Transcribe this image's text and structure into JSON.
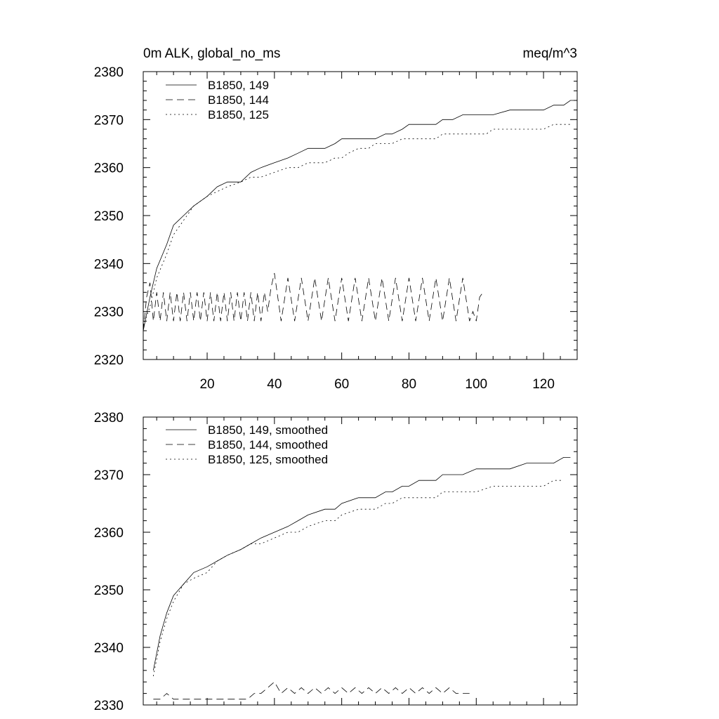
{
  "page": {
    "title_left": "0m ALK, global_no_ms",
    "title_right": "meq/m^3"
  },
  "chart_data": [
    {
      "type": "line",
      "title": "0m ALK, global_no_ms",
      "units": "meq/m^3",
      "xlim": [
        1,
        130
      ],
      "ylim": [
        2320,
        2380
      ],
      "x_ticks": [
        20,
        40,
        60,
        80,
        100,
        120
      ],
      "y_ticks": [
        2320,
        2330,
        2340,
        2350,
        2360,
        2370,
        2380
      ],
      "legend_position": "top-left",
      "series": [
        {
          "name": "B1850, 149",
          "dash": "solid",
          "x": [
            1,
            3,
            5,
            8,
            10,
            13,
            16,
            20,
            23,
            26,
            30,
            33,
            36,
            40,
            44,
            47,
            50,
            55,
            58,
            60,
            62,
            65,
            68,
            70,
            73,
            75,
            78,
            80,
            85,
            88,
            90,
            93,
            96,
            100,
            105,
            110,
            115,
            120,
            123,
            126,
            128,
            130
          ],
          "y": [
            2326,
            2333,
            2339,
            2344,
            2348,
            2350,
            2352,
            2354,
            2356,
            2357,
            2357,
            2359,
            2360,
            2361,
            2362,
            2363,
            2364,
            2364,
            2365,
            2366,
            2366,
            2366,
            2366,
            2366,
            2367,
            2367,
            2368,
            2369,
            2369,
            2369,
            2370,
            2370,
            2371,
            2371,
            2371,
            2372,
            2372,
            2372,
            2373,
            2373,
            2374,
            2374
          ]
        },
        {
          "name": "B1850, 144",
          "dash": "dashed",
          "x": [
            1,
            2,
            3,
            4,
            5,
            6,
            7,
            8,
            9,
            10,
            11,
            12,
            13,
            14,
            15,
            16,
            17,
            18,
            19,
            20,
            21,
            22,
            23,
            24,
            25,
            26,
            27,
            28,
            29,
            30,
            31,
            32,
            33,
            34,
            35,
            36,
            37,
            38,
            39,
            40,
            42,
            44,
            46,
            48,
            50,
            52,
            54,
            56,
            58,
            60,
            62,
            64,
            66,
            68,
            70,
            72,
            74,
            76,
            78,
            80,
            82,
            84,
            86,
            88,
            90,
            92,
            94,
            96,
            98,
            99,
            100,
            101,
            102
          ],
          "y": [
            2326,
            2333,
            2336,
            2328,
            2334,
            2328,
            2334,
            2328,
            2334,
            2328,
            2334,
            2328,
            2334,
            2328,
            2334,
            2328,
            2334,
            2328,
            2334,
            2328,
            2334,
            2328,
            2334,
            2328,
            2334,
            2328,
            2334,
            2328,
            2334,
            2328,
            2334,
            2328,
            2334,
            2328,
            2334,
            2328,
            2334,
            2330,
            2335,
            2338,
            2328,
            2337,
            2328,
            2337,
            2328,
            2337,
            2328,
            2337,
            2328,
            2337,
            2328,
            2337,
            2328,
            2337,
            2328,
            2337,
            2328,
            2337,
            2328,
            2337,
            2328,
            2337,
            2328,
            2337,
            2328,
            2337,
            2328,
            2337,
            2328,
            2330,
            2328,
            2333,
            2334
          ]
        },
        {
          "name": "B1850, 125",
          "dash": "dotted",
          "x": [
            1,
            3,
            5,
            8,
            10,
            13,
            16,
            20,
            23,
            26,
            30,
            33,
            36,
            40,
            44,
            47,
            50,
            55,
            58,
            60,
            62,
            65,
            68,
            70,
            73,
            75,
            78,
            80,
            83,
            85,
            88,
            90,
            93,
            96,
            100,
            103,
            105,
            108,
            110,
            113,
            116,
            120,
            123,
            126,
            128
          ],
          "y": [
            2327,
            2331,
            2337,
            2342,
            2346,
            2349,
            2352,
            2354,
            2355,
            2356,
            2357,
            2358,
            2358,
            2359,
            2360,
            2360,
            2361,
            2361,
            2362,
            2362,
            2363,
            2364,
            2364,
            2365,
            2365,
            2365,
            2366,
            2366,
            2366,
            2366,
            2366,
            2367,
            2367,
            2367,
            2367,
            2367,
            2368,
            2368,
            2368,
            2368,
            2368,
            2368,
            2369,
            2369,
            2369
          ]
        }
      ]
    },
    {
      "type": "line",
      "xlim": [
        1,
        130
      ],
      "ylim": [
        2330,
        2380
      ],
      "y_ticks": [
        2330,
        2340,
        2350,
        2360,
        2370,
        2380
      ],
      "legend_position": "top-left",
      "series": [
        {
          "name": "B1850, 149, smoothed",
          "dash": "solid",
          "x": [
            4,
            6,
            8,
            10,
            13,
            16,
            20,
            23,
            26,
            30,
            33,
            36,
            40,
            44,
            47,
            50,
            55,
            58,
            60,
            65,
            70,
            73,
            75,
            78,
            80,
            83,
            85,
            88,
            90,
            93,
            96,
            100,
            105,
            110,
            115,
            120,
            123,
            126,
            128
          ],
          "y": [
            2336,
            2342,
            2346,
            2349,
            2351,
            2353,
            2354,
            2355,
            2356,
            2357,
            2358,
            2359,
            2360,
            2361,
            2362,
            2363,
            2364,
            2364,
            2365,
            2366,
            2366,
            2367,
            2367,
            2368,
            2368,
            2369,
            2369,
            2369,
            2370,
            2370,
            2370,
            2371,
            2371,
            2371,
            2372,
            2372,
            2372,
            2373,
            2373
          ]
        },
        {
          "name": "B1850, 144, smoothed",
          "dash": "dashed",
          "x": [
            4,
            6,
            8,
            10,
            12,
            14,
            16,
            18,
            20,
            22,
            24,
            26,
            28,
            30,
            32,
            34,
            36,
            38,
            40,
            42,
            44,
            46,
            48,
            50,
            52,
            54,
            56,
            58,
            60,
            62,
            64,
            66,
            68,
            70,
            72,
            74,
            76,
            78,
            80,
            82,
            84,
            86,
            88,
            90,
            92,
            94,
            96,
            98
          ],
          "y": [
            2331,
            2331,
            2332,
            2331,
            2331,
            2331,
            2331,
            2331,
            2331,
            2331,
            2331,
            2331,
            2331,
            2331,
            2331,
            2332,
            2332,
            2333,
            2334,
            2332,
            2333,
            2332,
            2333,
            2332,
            2333,
            2332,
            2333,
            2332,
            2333,
            2332,
            2333,
            2332,
            2333,
            2332,
            2333,
            2332,
            2333,
            2332,
            2333,
            2332,
            2333,
            2332,
            2333,
            2332,
            2333,
            2332,
            2332,
            2332
          ]
        },
        {
          "name": "B1850, 125, smoothed",
          "dash": "dotted",
          "x": [
            4,
            6,
            8,
            10,
            13,
            16,
            20,
            23,
            26,
            30,
            33,
            36,
            40,
            44,
            47,
            50,
            55,
            58,
            60,
            65,
            70,
            73,
            75,
            78,
            80,
            83,
            85,
            88,
            90,
            93,
            96,
            100,
            105,
            110,
            115,
            120,
            123,
            126
          ],
          "y": [
            2335,
            2341,
            2345,
            2348,
            2351,
            2352,
            2353,
            2355,
            2356,
            2357,
            2358,
            2358,
            2359,
            2360,
            2360,
            2361,
            2362,
            2362,
            2363,
            2364,
            2364,
            2365,
            2365,
            2366,
            2366,
            2366,
            2366,
            2366,
            2367,
            2367,
            2367,
            2367,
            2368,
            2368,
            2368,
            2368,
            2369,
            2369
          ]
        }
      ]
    }
  ]
}
